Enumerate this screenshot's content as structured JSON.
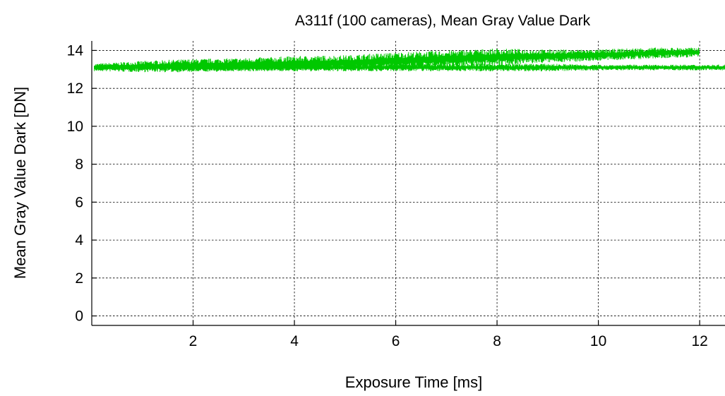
{
  "chart_data": {
    "type": "line",
    "title": "A311f (100 cameras), Mean Gray Value Dark",
    "xlabel": "Exposure Time [ms]",
    "ylabel": "Mean Gray Value Dark [DN]",
    "xlim": [
      0,
      12.5
    ],
    "ylim": [
      -0.5,
      14.5
    ],
    "x_ticks": [
      2,
      4,
      6,
      8,
      10,
      12
    ],
    "y_ticks": [
      0,
      2,
      4,
      6,
      8,
      10,
      12,
      14
    ],
    "grid": true,
    "legend": "none",
    "series_color": "#00c800",
    "series": [
      {
        "x": [
          0.05,
          1,
          2,
          3,
          4,
          5,
          6,
          7,
          8,
          9,
          10,
          11,
          12
        ],
        "y": [
          13.1,
          13.15,
          13.2,
          13.25,
          13.3,
          13.35,
          13.45,
          13.55,
          13.65,
          13.7,
          13.75,
          13.85,
          13.9
        ],
        "spread": [
          0.2,
          0.3,
          0.35,
          0.35,
          0.4,
          0.4,
          0.45,
          0.45,
          0.45,
          0.35,
          0.3,
          0.3,
          0.25
        ]
      },
      {
        "x": [
          0.05,
          1,
          2,
          3,
          4,
          5,
          6,
          7,
          8,
          9,
          10,
          11,
          12,
          12.5
        ],
        "y": [
          13.1,
          13.1,
          13.1,
          13.1,
          13.1,
          13.1,
          13.1,
          13.1,
          13.1,
          13.1,
          13.1,
          13.1,
          13.1,
          13.1
        ],
        "spread": [
          0.15,
          0.15,
          0.2,
          0.2,
          0.2,
          0.2,
          0.2,
          0.2,
          0.2,
          0.2,
          0.15,
          0.15,
          0.15,
          0.15
        ]
      }
    ]
  }
}
